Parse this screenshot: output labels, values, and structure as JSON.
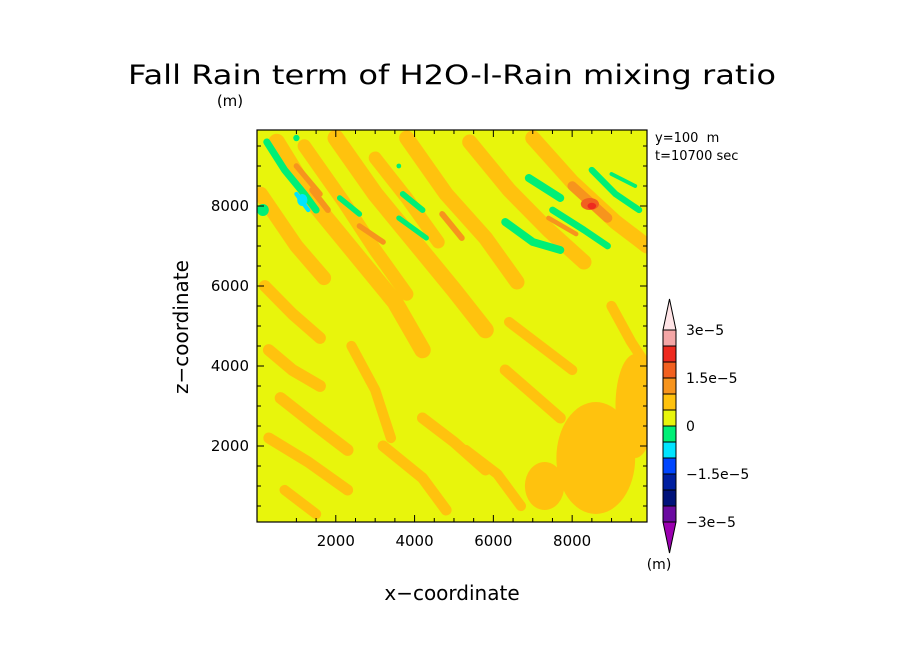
{
  "chart_data": {
    "type": "heatmap",
    "title": "Fall Rain term of H2O-l-Rain mixing ratio",
    "title_unit": "(m)",
    "xlabel": "x−coordinate",
    "ylabel": "z−coordinate",
    "xlim": [
      0,
      9900
    ],
    "ylim": [
      100,
      9900
    ],
    "x_ticks": [
      2000,
      4000,
      6000,
      8000
    ],
    "y_ticks": [
      2000,
      4000,
      6000,
      8000
    ],
    "info": [
      "y=100  m",
      "t=10700 sec"
    ],
    "grid": false,
    "colorbar": {
      "placement": "right",
      "unit": "(m)",
      "ticks": [
        "3e−5",
        "1.5e−5",
        "0",
        "−1.5e−5",
        "−3e−5"
      ],
      "tick_values": [
        3e-05,
        1.5e-05,
        0,
        -1.5e-05,
        -3e-05
      ],
      "levels_top_to_bottom": [
        {
          "label": ">3e-5",
          "color": "#ffe4e6"
        },
        {
          "label": "2.5e-5 to 3e-5",
          "color": "#f4a6a6"
        },
        {
          "label": "2e-5 to 2.5e-5",
          "color": "#ee2a1f"
        },
        {
          "label": "1.5e-5 to 2e-5",
          "color": "#f16020"
        },
        {
          "label": "1e-5 to 1.5e-5",
          "color": "#f7941d"
        },
        {
          "label": "5e-6 to 1e-5",
          "color": "#ffc20e"
        },
        {
          "label": "0 to 5e-6",
          "color": "#e8f50c"
        },
        {
          "label": "-5e-6 to 0",
          "color": "#00ef76"
        },
        {
          "label": "-1e-5 to -5e-6",
          "color": "#00e4ff"
        },
        {
          "label": "-1.5e-5 to -1e-5",
          "color": "#0046ff"
        },
        {
          "label": "-2e-5 to -1.5e-5",
          "color": "#001fa0"
        },
        {
          "label": "-2.5e-5 to -2e-5",
          "color": "#00127a"
        },
        {
          "label": "-3e-5 to -2.5e-5",
          "color": "#6a0aa0"
        },
        {
          "label": "<-3e-5",
          "color": "#9b00b0"
        }
      ]
    },
    "background_color": "#e8f50c",
    "features": [
      {
        "kind": "band",
        "color": "#ffc20e",
        "points": [
          [
            500,
            9600
          ],
          [
            1500,
            8000
          ],
          [
            2500,
            6800
          ],
          [
            3500,
            5600
          ],
          [
            4200,
            4400
          ]
        ],
        "width": 420
      },
      {
        "kind": "band",
        "color": "#ffc20e",
        "points": [
          [
            2000,
            9700
          ],
          [
            3000,
            8300
          ],
          [
            4000,
            7100
          ],
          [
            5000,
            5900
          ],
          [
            5800,
            4900
          ]
        ],
        "width": 420
      },
      {
        "kind": "band",
        "color": "#ffc20e",
        "points": [
          [
            3800,
            9700
          ],
          [
            4800,
            8300
          ],
          [
            5800,
            7200
          ],
          [
            6600,
            6100
          ]
        ],
        "width": 380
      },
      {
        "kind": "band",
        "color": "#ffc20e",
        "points": [
          [
            5400,
            9600
          ],
          [
            6400,
            8400
          ],
          [
            7400,
            7400
          ],
          [
            8300,
            6600
          ]
        ],
        "width": 380
      },
      {
        "kind": "band",
        "color": "#ffc20e",
        "points": [
          [
            7000,
            9700
          ],
          [
            8000,
            8600
          ],
          [
            9100,
            7600
          ],
          [
            9900,
            7000
          ]
        ],
        "width": 380
      },
      {
        "kind": "band",
        "color": "#ffc20e",
        "points": [
          [
            100,
            8300
          ],
          [
            1000,
            7000
          ],
          [
            1700,
            6200
          ]
        ],
        "width": 360
      },
      {
        "kind": "band",
        "color": "#ffc20e",
        "points": [
          [
            1200,
            9500
          ],
          [
            2200,
            8100
          ],
          [
            3000,
            6900
          ],
          [
            3800,
            5800
          ]
        ],
        "width": 340
      },
      {
        "kind": "band",
        "color": "#ffc20e",
        "points": [
          [
            3000,
            9200
          ],
          [
            3800,
            8200
          ],
          [
            4600,
            7100
          ]
        ],
        "width": 330
      },
      {
        "kind": "band",
        "color": "#ffc20e",
        "points": [
          [
            200,
            6000
          ],
          [
            900,
            5300
          ],
          [
            1600,
            4700
          ]
        ],
        "width": 300
      },
      {
        "kind": "band",
        "color": "#ffc20e",
        "points": [
          [
            300,
            4400
          ],
          [
            900,
            3900
          ],
          [
            1600,
            3500
          ]
        ],
        "width": 300
      },
      {
        "kind": "band",
        "color": "#ffc20e",
        "points": [
          [
            600,
            3200
          ],
          [
            1500,
            2500
          ],
          [
            2300,
            1900
          ]
        ],
        "width": 300
      },
      {
        "kind": "band",
        "color": "#ffc20e",
        "points": [
          [
            300,
            2200
          ],
          [
            1300,
            1600
          ],
          [
            2300,
            900
          ]
        ],
        "width": 280
      },
      {
        "kind": "band",
        "color": "#ffc20e",
        "points": [
          [
            2400,
            4500
          ],
          [
            3000,
            3400
          ],
          [
            3400,
            2200
          ]
        ],
        "width": 260
      },
      {
        "kind": "band",
        "color": "#ffc20e",
        "points": [
          [
            4200,
            2700
          ],
          [
            5000,
            2100
          ],
          [
            5800,
            1400
          ]
        ],
        "width": 280
      },
      {
        "kind": "band",
        "color": "#ffc20e",
        "points": [
          [
            3200,
            2000
          ],
          [
            4200,
            1200
          ],
          [
            4800,
            400
          ]
        ],
        "width": 280
      },
      {
        "kind": "band",
        "color": "#ffc20e",
        "points": [
          [
            6300,
            3900
          ],
          [
            7000,
            3300
          ],
          [
            7700,
            2700
          ]
        ],
        "width": 280
      },
      {
        "kind": "band",
        "color": "#ffc20e",
        "points": [
          [
            6400,
            5100
          ],
          [
            7200,
            4500
          ],
          [
            8000,
            3900
          ]
        ],
        "width": 260
      },
      {
        "kind": "band",
        "color": "#ffc20e",
        "points": [
          [
            5300,
            1900
          ],
          [
            6100,
            1300
          ],
          [
            6700,
            500
          ]
        ],
        "width": 260
      },
      {
        "kind": "band",
        "color": "#ffc20e",
        "points": [
          [
            9000,
            5500
          ],
          [
            9500,
            4600
          ],
          [
            9900,
            4000
          ]
        ],
        "width": 260
      },
      {
        "kind": "band",
        "color": "#ffc20e",
        "points": [
          [
            700,
            900
          ],
          [
            1500,
            300
          ]
        ],
        "width": 260
      },
      {
        "kind": "blob",
        "color": "#ffc20e",
        "cx": 8600,
        "cy": 1700,
        "rx": 1000,
        "ry": 1400
      },
      {
        "kind": "blob",
        "color": "#ffc20e",
        "cx": 9600,
        "cy": 3000,
        "rx": 500,
        "ry": 1300
      },
      {
        "kind": "blob",
        "color": "#ffc20e",
        "cx": 7300,
        "cy": 1000,
        "rx": 500,
        "ry": 600
      },
      {
        "kind": "band",
        "color": "#f7941d",
        "points": [
          [
            1400,
            8400
          ],
          [
            1800,
            7900
          ]
        ],
        "width": 150
      },
      {
        "kind": "band",
        "color": "#f7941d",
        "points": [
          [
            2600,
            7500
          ],
          [
            3200,
            7100
          ]
        ],
        "width": 140
      },
      {
        "kind": "band",
        "color": "#f7941d",
        "points": [
          [
            4700,
            7800
          ],
          [
            5200,
            7200
          ]
        ],
        "width": 150
      },
      {
        "kind": "band",
        "color": "#f7941d",
        "points": [
          [
            7400,
            7700
          ],
          [
            8100,
            7300
          ]
        ],
        "width": 120
      },
      {
        "kind": "band",
        "color": "#f7941d",
        "points": [
          [
            8000,
            8500
          ],
          [
            8900,
            7700
          ]
        ],
        "width": 240
      },
      {
        "kind": "band",
        "color": "#f7941d",
        "points": [
          [
            1000,
            9000
          ],
          [
            1600,
            8300
          ]
        ],
        "width": 140
      },
      {
        "kind": "blob",
        "color": "#f16020",
        "cx": 8450,
        "cy": 8050,
        "rx": 230,
        "ry": 150
      },
      {
        "kind": "blob",
        "color": "#ee2a1f",
        "cx": 8500,
        "cy": 8000,
        "rx": 110,
        "ry": 80
      },
      {
        "kind": "band",
        "color": "#00ef76",
        "points": [
          [
            250,
            9600
          ],
          [
            700,
            8900
          ],
          [
            1200,
            8300
          ],
          [
            1500,
            7900
          ]
        ],
        "width": 180
      },
      {
        "kind": "band",
        "color": "#00ef76",
        "points": [
          [
            2100,
            8200
          ],
          [
            2600,
            7800
          ]
        ],
        "width": 140
      },
      {
        "kind": "band",
        "color": "#00ef76",
        "points": [
          [
            3700,
            8300
          ],
          [
            4200,
            7900
          ]
        ],
        "width": 150
      },
      {
        "kind": "band",
        "color": "#00ef76",
        "points": [
          [
            3600,
            7700
          ],
          [
            4300,
            7200
          ]
        ],
        "width": 130
      },
      {
        "kind": "band",
        "color": "#00ef76",
        "points": [
          [
            6300,
            7600
          ],
          [
            7000,
            7100
          ],
          [
            7700,
            6900
          ]
        ],
        "width": 200
      },
      {
        "kind": "band",
        "color": "#00ef76",
        "points": [
          [
            7500,
            7900
          ],
          [
            8300,
            7400
          ],
          [
            8900,
            7000
          ]
        ],
        "width": 170
      },
      {
        "kind": "band",
        "color": "#00ef76",
        "points": [
          [
            6900,
            8700
          ],
          [
            7700,
            8200
          ]
        ],
        "width": 200
      },
      {
        "kind": "band",
        "color": "#00ef76",
        "points": [
          [
            8500,
            8900
          ],
          [
            9100,
            8300
          ],
          [
            9700,
            7900
          ]
        ],
        "width": 160
      },
      {
        "kind": "band",
        "color": "#00ef76",
        "points": [
          [
            9000,
            8800
          ],
          [
            9600,
            8500
          ]
        ],
        "width": 100
      },
      {
        "kind": "blob",
        "color": "#00ef76",
        "cx": 150,
        "cy": 7900,
        "rx": 150,
        "ry": 150
      },
      {
        "kind": "blob",
        "color": "#00ef76",
        "cx": 3600,
        "cy": 9000,
        "rx": 60,
        "ry": 60
      },
      {
        "kind": "blob",
        "color": "#00ef76",
        "cx": 1000,
        "cy": 9700,
        "rx": 80,
        "ry": 80
      },
      {
        "kind": "band",
        "color": "#00e4ff",
        "points": [
          [
            1000,
            8300
          ],
          [
            1300,
            7900
          ]
        ],
        "width": 110
      },
      {
        "kind": "blob",
        "color": "#00e4ff",
        "cx": 1150,
        "cy": 8150,
        "rx": 130,
        "ry": 150
      }
    ]
  }
}
